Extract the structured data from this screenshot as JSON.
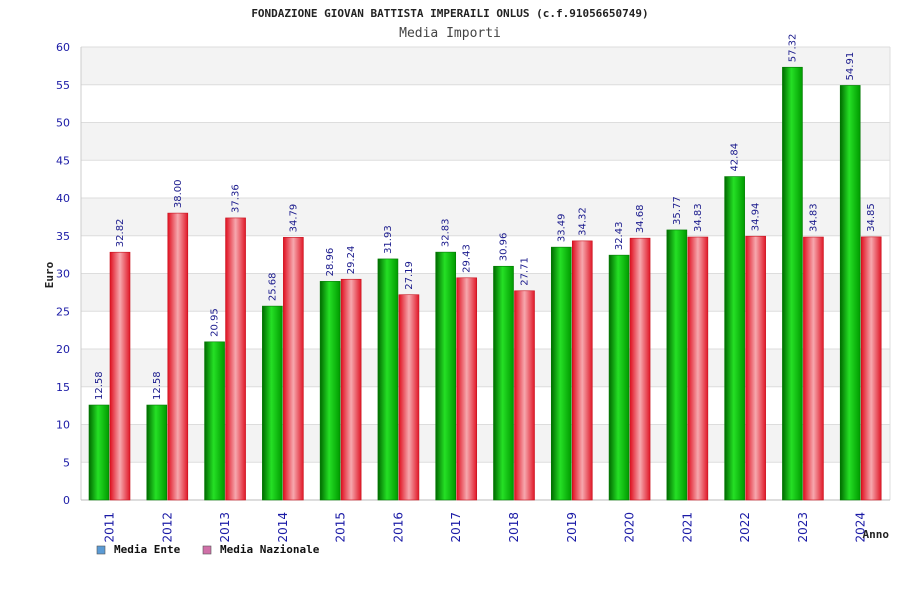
{
  "chart_data": {
    "type": "bar",
    "title": "FONDAZIONE GIOVAN BATTISTA IMPERAILI ONLUS (c.f.91056650749)",
    "subtitle": "Media Importi",
    "xlabel": "Anno",
    "ylabel": "Euro",
    "ylim": [
      0,
      60
    ],
    "yticks": [
      0,
      5,
      10,
      15,
      20,
      25,
      30,
      35,
      40,
      45,
      50,
      55,
      60
    ],
    "grid": true,
    "legend_position": "bottom-left",
    "categories": [
      "2011",
      "2012",
      "2013",
      "2014",
      "2015",
      "2016",
      "2017",
      "2018",
      "2019",
      "2020",
      "2021",
      "2022",
      "2023",
      "2024"
    ],
    "series": [
      {
        "name": "Media Ente",
        "color": "#00b400",
        "legend_color": "#5b9bd5",
        "values": [
          12.58,
          12.58,
          20.95,
          25.68,
          28.96,
          31.93,
          32.83,
          30.96,
          33.49,
          32.43,
          35.77,
          42.84,
          57.32,
          54.91
        ],
        "labels": [
          "12.58",
          "12.58",
          "20.95",
          "25.68",
          "28.96",
          "31.93",
          "32.83",
          "30.96",
          "33.49",
          "32.43",
          "35.77",
          "42.84",
          "57.32",
          "54.91"
        ]
      },
      {
        "name": "Media Nazionale",
        "color": "#e8202a",
        "legend_color": "#d070a8",
        "values": [
          32.82,
          38.0,
          37.36,
          34.79,
          29.24,
          27.19,
          29.43,
          27.71,
          34.32,
          34.68,
          34.83,
          34.94,
          34.83,
          34.85
        ],
        "labels": [
          "32.82",
          "38.00",
          "37.36",
          "34.79",
          "29.24",
          "27.19",
          "29.43",
          "27.71",
          "34.32",
          "34.68",
          "34.83",
          "34.94",
          "34.83",
          "34.85"
        ]
      }
    ]
  }
}
